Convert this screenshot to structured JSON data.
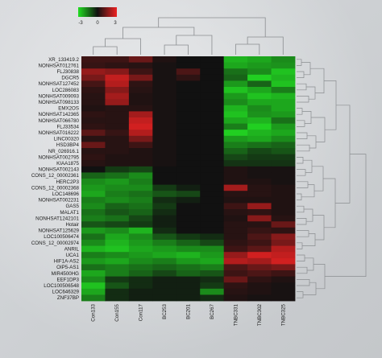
{
  "chart_data": {
    "type": "heatmap",
    "title": "",
    "xlabel": "",
    "ylabel": "",
    "color_scale": {
      "min": -3,
      "mid": 0,
      "max": 3,
      "low_color": "#22dd22",
      "mid_color": "#111111",
      "high_color": "#ee2222",
      "tick_labels": [
        "-3",
        "0",
        "3"
      ]
    },
    "columns": [
      "Con133",
      "Con155",
      "Con117",
      "BC253",
      "BC201",
      "BC267",
      "TNBC331",
      "TNBC302",
      "TNBC325"
    ],
    "rows": [
      "XR_133419.2",
      "NONHSAT012761",
      "FLJ30838",
      "DGCR5",
      "NONHSAT127452",
      "LOC286083",
      "NONHSAT009093",
      "NONHSAT098133",
      "EMX2OS",
      "NONHSAT142365",
      "NONHSAT066780",
      "FLJ33534",
      "NONHSAT016222",
      "LINC00320",
      "HSD3BP4",
      "NR_026916.1",
      "NONHSAT002795",
      "KIAA1875",
      "NONHSAT002143",
      "CONS_12_00002361",
      "HERC2P3",
      "CONS_12_00002368",
      "LOC148696",
      "NONHSAT002231",
      "GAS5",
      "MALAT1",
      "NONHSAT1242101",
      "Hotair",
      "NONHSAT125629",
      "LOC100506474",
      "CONS_12_00002974",
      "ANRIL",
      "UCA1",
      "HIF1A-AS2",
      "OIP5-AS1",
      "MIR4500HG",
      "EEF1DP3",
      "LOC100506548",
      "LOC646329",
      "ZNF37BP"
    ],
    "values": [
      [
        0.6,
        0.6,
        1.2,
        0.2,
        0.0,
        0.0,
        -2.4,
        -2.2,
        -1.8
      ],
      [
        0.5,
        0.4,
        0.3,
        0.1,
        0.0,
        0.0,
        -2.2,
        -2.0,
        -1.9
      ],
      [
        1.8,
        1.6,
        0.6,
        0.1,
        0.8,
        0.0,
        -1.4,
        -1.8,
        -2.6
      ],
      [
        1.4,
        2.4,
        1.4,
        0.1,
        0.4,
        0.0,
        -1.2,
        -2.8,
        -2.4
      ],
      [
        0.7,
        2.2,
        0.4,
        0.1,
        0.0,
        0.0,
        -2.0,
        -1.2,
        -2.6
      ],
      [
        0.4,
        1.6,
        0.3,
        0.1,
        0.0,
        0.0,
        -2.6,
        -2.2,
        -1.6
      ],
      [
        0.3,
        2.0,
        0.2,
        0.1,
        0.0,
        0.0,
        -2.0,
        -2.6,
        -2.4
      ],
      [
        0.3,
        1.8,
        0.2,
        0.1,
        0.0,
        0.0,
        -1.8,
        -2.2,
        -2.2
      ],
      [
        0.2,
        0.3,
        0.3,
        0.1,
        0.0,
        0.0,
        -2.4,
        -1.8,
        -2.2
      ],
      [
        0.4,
        0.3,
        2.0,
        0.1,
        0.0,
        0.0,
        -2.6,
        -1.9,
        -2.0
      ],
      [
        0.3,
        0.3,
        2.4,
        0.1,
        0.0,
        0.0,
        -2.2,
        -2.4,
        -1.4
      ],
      [
        0.4,
        0.3,
        2.6,
        0.1,
        0.0,
        0.0,
        -1.6,
        -2.8,
        -2.0
      ],
      [
        1.0,
        0.5,
        2.2,
        0.1,
        0.0,
        0.0,
        -2.8,
        -2.4,
        -2.2
      ],
      [
        0.3,
        0.3,
        1.4,
        0.1,
        0.0,
        0.0,
        -2.0,
        -2.2,
        -1.8
      ],
      [
        1.2,
        0.3,
        0.6,
        0.1,
        0.0,
        0.0,
        -1.6,
        -1.4,
        -1.2
      ],
      [
        0.3,
        0.3,
        0.2,
        0.1,
        0.0,
        0.0,
        -1.2,
        -0.8,
        -1.0
      ],
      [
        0.4,
        0.2,
        0.2,
        0.1,
        0.0,
        0.0,
        -0.8,
        -0.6,
        -0.6
      ],
      [
        0.3,
        0.2,
        0.2,
        0.1,
        0.0,
        0.0,
        -0.5,
        -0.5,
        -0.5
      ],
      [
        0.0,
        -0.6,
        -0.8,
        0.0,
        0.0,
        0.0,
        0.2,
        0.1,
        0.1
      ],
      [
        -1.2,
        -1.4,
        -1.8,
        0.0,
        0.0,
        0.0,
        0.2,
        0.1,
        0.1
      ],
      [
        -1.8,
        -2.0,
        -1.6,
        0.0,
        0.0,
        0.0,
        0.2,
        0.2,
        0.1
      ],
      [
        -2.0,
        -1.8,
        -1.8,
        -0.6,
        -0.2,
        0.0,
        2.0,
        0.3,
        0.2
      ],
      [
        -2.2,
        -1.6,
        -1.4,
        -1.0,
        -0.8,
        0.0,
        0.3,
        0.3,
        0.2
      ],
      [
        -1.6,
        -1.8,
        -1.6,
        -0.4,
        -0.2,
        0.0,
        0.2,
        0.2,
        0.2
      ],
      [
        -1.8,
        -1.2,
        -1.4,
        -0.6,
        0.0,
        0.0,
        0.6,
        1.8,
        0.2
      ],
      [
        -1.4,
        -1.0,
        -1.2,
        -0.4,
        0.0,
        0.0,
        0.3,
        0.4,
        0.2
      ],
      [
        -1.6,
        -1.4,
        -0.8,
        -0.2,
        0.0,
        0.0,
        0.2,
        1.6,
        0.3
      ],
      [
        -1.0,
        -0.8,
        -0.6,
        -0.2,
        0.0,
        0.0,
        0.3,
        0.3,
        1.2
      ],
      [
        -2.0,
        -1.8,
        -2.4,
        -0.4,
        0.0,
        0.0,
        0.3,
        0.5,
        0.4
      ],
      [
        -1.4,
        -2.2,
        -1.8,
        -1.0,
        -0.6,
        -0.4,
        0.3,
        0.8,
        1.6
      ],
      [
        -1.8,
        -2.4,
        -2.0,
        -1.6,
        -1.2,
        -0.8,
        0.4,
        0.6,
        1.4
      ],
      [
        -2.4,
        -2.6,
        -2.2,
        -2.0,
        -1.8,
        -1.8,
        0.6,
        1.0,
        2.2
      ],
      [
        -1.6,
        -1.8,
        -2.0,
        -2.2,
        -2.4,
        -2.0,
        1.8,
        2.6,
        2.4
      ],
      [
        -2.0,
        -2.2,
        -1.8,
        -1.6,
        -2.0,
        -2.2,
        2.2,
        2.0,
        2.6
      ],
      [
        -1.4,
        -1.6,
        -1.4,
        -1.2,
        -1.4,
        -1.6,
        0.8,
        1.2,
        1.4
      ],
      [
        -2.2,
        -1.6,
        -1.2,
        -0.8,
        -1.2,
        -1.0,
        0.6,
        0.8,
        0.6
      ],
      [
        -1.8,
        -0.6,
        -0.4,
        -0.2,
        -0.2,
        -0.4,
        1.2,
        0.4,
        0.2
      ],
      [
        -2.6,
        -1.0,
        -0.4,
        -0.2,
        -0.2,
        -0.6,
        0.4,
        0.2,
        0.1
      ],
      [
        -2.2,
        -0.4,
        -0.2,
        -0.2,
        -0.2,
        -1.8,
        0.3,
        0.2,
        0.1
      ],
      [
        -1.6,
        -0.4,
        -0.2,
        -0.2,
        -0.2,
        -0.4,
        0.2,
        0.1,
        0.1
      ]
    ],
    "legend_placement": "top-left",
    "dendrograms": [
      "top",
      "right"
    ]
  }
}
